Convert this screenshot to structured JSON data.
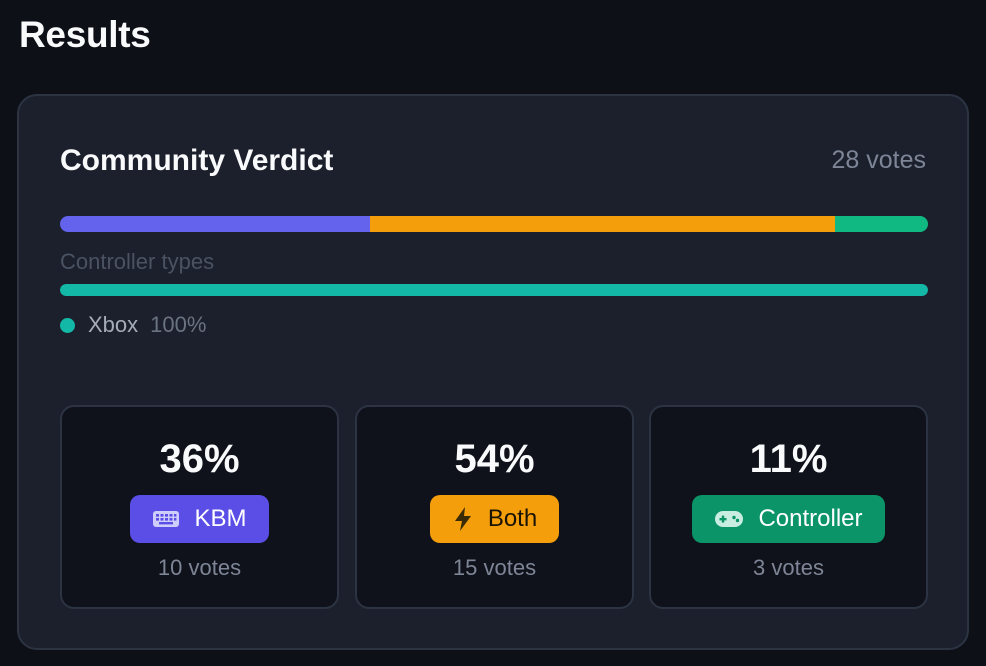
{
  "page": {
    "title": "Results"
  },
  "verdict": {
    "title": "Community Verdict",
    "total_votes": "28 votes",
    "split": [
      {
        "key": "kbm",
        "fraction": 0.357,
        "color": "#6363ee"
      },
      {
        "key": "both",
        "fraction": 0.536,
        "color": "#f59e0b"
      },
      {
        "key": "controller",
        "fraction": 0.107,
        "color": "#10b981"
      }
    ]
  },
  "controller_types": {
    "label": "Controller types",
    "bar_color": "#14b8a6",
    "items": [
      {
        "name": "Xbox",
        "percent": "100%",
        "fraction": 1.0,
        "color": "#14b8a6"
      }
    ]
  },
  "stats": [
    {
      "percent": "36%",
      "label": "KBM",
      "votes": "10 votes",
      "icon": "keyboard-icon",
      "badge_color": "#5b4ee6",
      "text_color": "#ffffff"
    },
    {
      "percent": "54%",
      "label": "Both",
      "votes": "15 votes",
      "icon": "lightning-icon",
      "badge_color": "#f59e0b",
      "text_color": "#1a1405"
    },
    {
      "percent": "11%",
      "label": "Controller",
      "votes": "3 votes",
      "icon": "gamepad-icon",
      "badge_color": "#0b9467",
      "text_color": "#ffffff"
    }
  ]
}
